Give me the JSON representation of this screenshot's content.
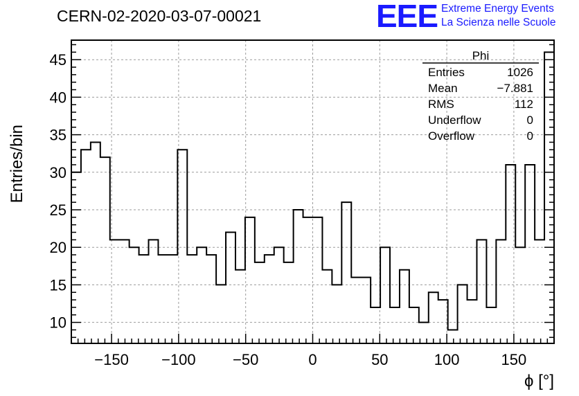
{
  "header": {
    "title": "CERN-02-2020-03-07-00021",
    "logo_text": "EEE",
    "logo_line1": "Extreme Energy Events",
    "logo_line2": "La Scienza nelle Scuole",
    "brand_color": "#1a1aff"
  },
  "stats_box": {
    "name": "Phi",
    "rows": [
      {
        "label": "Entries",
        "value": "1026"
      },
      {
        "label": "Mean",
        "value": "−7.881"
      },
      {
        "label": "RMS",
        "value": "112"
      },
      {
        "label": "Underflow",
        "value": "0"
      },
      {
        "label": "Overflow",
        "value": "0"
      }
    ]
  },
  "chart_data": {
    "type": "bar",
    "style": "step-histogram",
    "xlabel": "ϕ [°]",
    "ylabel": "Entries/bin",
    "xlim": [
      -180,
      180
    ],
    "ylim": [
      7.2,
      47.6
    ],
    "xticks": [
      -150,
      -100,
      -50,
      0,
      50,
      100,
      150
    ],
    "xtick_labels": [
      "−150",
      "−100",
      "−50",
      "0",
      "50",
      "100",
      "150"
    ],
    "yticks": [
      10,
      15,
      20,
      25,
      30,
      35,
      40,
      45
    ],
    "ytick_labels": [
      "10",
      "15",
      "20",
      "25",
      "30",
      "35",
      "40",
      "45"
    ],
    "grid": true,
    "bin_width": 7.2,
    "bin_edges_start": -180,
    "values": [
      30,
      33,
      34,
      32,
      21,
      21,
      20,
      19,
      21,
      19,
      19,
      33,
      19,
      20,
      19,
      15,
      22,
      17,
      24,
      18,
      19,
      20,
      18,
      25,
      24,
      24,
      17,
      15,
      26,
      16,
      16,
      12,
      20,
      12,
      17,
      12,
      10,
      14,
      13,
      9,
      15,
      13,
      21,
      12,
      21,
      31,
      20,
      31,
      21,
      46
    ]
  }
}
